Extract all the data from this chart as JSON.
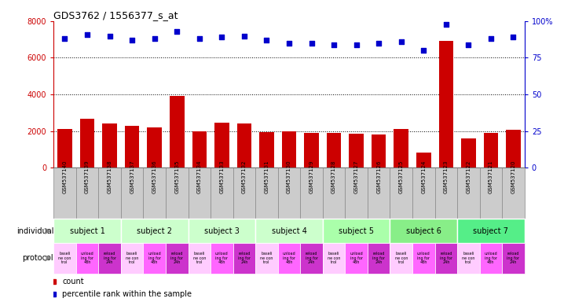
{
  "title": "GDS3762 / 1556377_s_at",
  "samples": [
    "GSM537140",
    "GSM537139",
    "GSM537138",
    "GSM537137",
    "GSM537136",
    "GSM537135",
    "GSM537134",
    "GSM537133",
    "GSM537132",
    "GSM537131",
    "GSM537130",
    "GSM537129",
    "GSM537128",
    "GSM537127",
    "GSM537126",
    "GSM537125",
    "GSM537124",
    "GSM537123",
    "GSM537122",
    "GSM537121",
    "GSM537120"
  ],
  "counts": [
    2100,
    2650,
    2400,
    2300,
    2200,
    3900,
    2000,
    2450,
    2400,
    1950,
    2000,
    1900,
    1900,
    1850,
    1800,
    2100,
    800,
    6900,
    1600,
    1900,
    2050
  ],
  "percentile_ranks": [
    88,
    91,
    90,
    87,
    88,
    93,
    88,
    89,
    90,
    87,
    85,
    85,
    84,
    84,
    85,
    86,
    80,
    98,
    84,
    88,
    89
  ],
  "bar_color": "#cc0000",
  "dot_color": "#0000cc",
  "ylim_left": [
    0,
    8000
  ],
  "ylim_right": [
    0,
    100
  ],
  "yticks_left": [
    0,
    2000,
    4000,
    6000,
    8000
  ],
  "yticks_right": [
    0,
    25,
    50,
    75,
    100
  ],
  "ytick_labels_right": [
    "0",
    "25",
    "50",
    "75",
    "100%"
  ],
  "grid_values": [
    2000,
    4000,
    6000
  ],
  "subjects": [
    {
      "label": "subject 1",
      "start": 0,
      "end": 3
    },
    {
      "label": "subject 2",
      "start": 3,
      "end": 6
    },
    {
      "label": "subject 3",
      "start": 6,
      "end": 9
    },
    {
      "label": "subject 4",
      "start": 9,
      "end": 12
    },
    {
      "label": "subject 5",
      "start": 12,
      "end": 15
    },
    {
      "label": "subject 6",
      "start": 15,
      "end": 18
    },
    {
      "label": "subject 7",
      "start": 18,
      "end": 21
    }
  ],
  "subject_colors": [
    "#ccffcc",
    "#ccffcc",
    "#ccffcc",
    "#ccffcc",
    "#aaffaa",
    "#88ee88",
    "#55ee88"
  ],
  "protocol_colors_cycle": [
    "#ffccff",
    "#ff66ff",
    "#cc33cc"
  ],
  "legend_count_color": "#cc0000",
  "legend_dot_color": "#0000cc",
  "individual_label": "individual",
  "protocol_label": "protocol",
  "background_color": "#ffffff",
  "tick_label_color_left": "#cc0000",
  "tick_label_color_right": "#0000cc",
  "sample_bg_color": "#cccccc",
  "sample_border_color": "#888888"
}
